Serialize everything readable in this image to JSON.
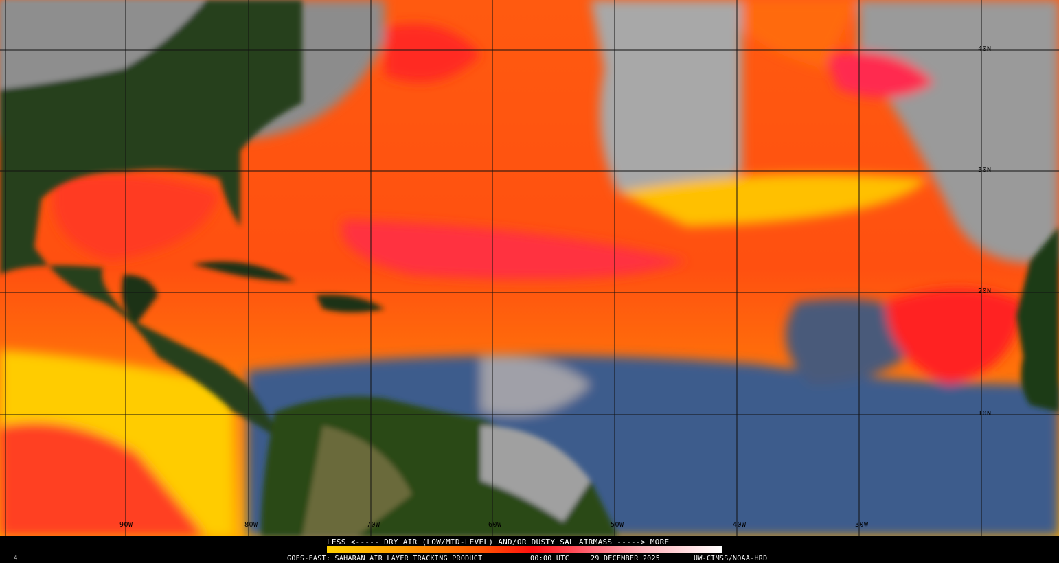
{
  "map": {
    "longitude_labels": [
      "90W",
      "80W",
      "70W",
      "60W",
      "50W",
      "40W",
      "30W"
    ],
    "latitude_labels": [
      "40N",
      "30N",
      "20N",
      "10N"
    ],
    "colors": {
      "ocean_dry": "#ff6a10",
      "very_dry": "#ff2020",
      "moderate": "#ffd800",
      "moist": "#3a5a8a",
      "clouds": "#a0a0a0",
      "land": "#243d14"
    }
  },
  "legend": {
    "title": "LESS <----- DRY AIR (LOW/MID-LEVEL) AND/OR DUSTY SAL AIRMASS -----> MORE",
    "gradient_colors": [
      "#ffd000",
      "#ff9a00",
      "#ff5a00",
      "#ff1010",
      "#ff6070",
      "#ffb0b8",
      "#ffffff"
    ]
  },
  "footer": {
    "product": "GOES-EAST: SAHARAN AIR LAYER TRACKING PRODUCT",
    "time": "00:00 UTC",
    "date": "29 DECEMBER 2025",
    "credit": "UW-CIMSS/NOAA-HRD",
    "corner_mark": "4"
  }
}
